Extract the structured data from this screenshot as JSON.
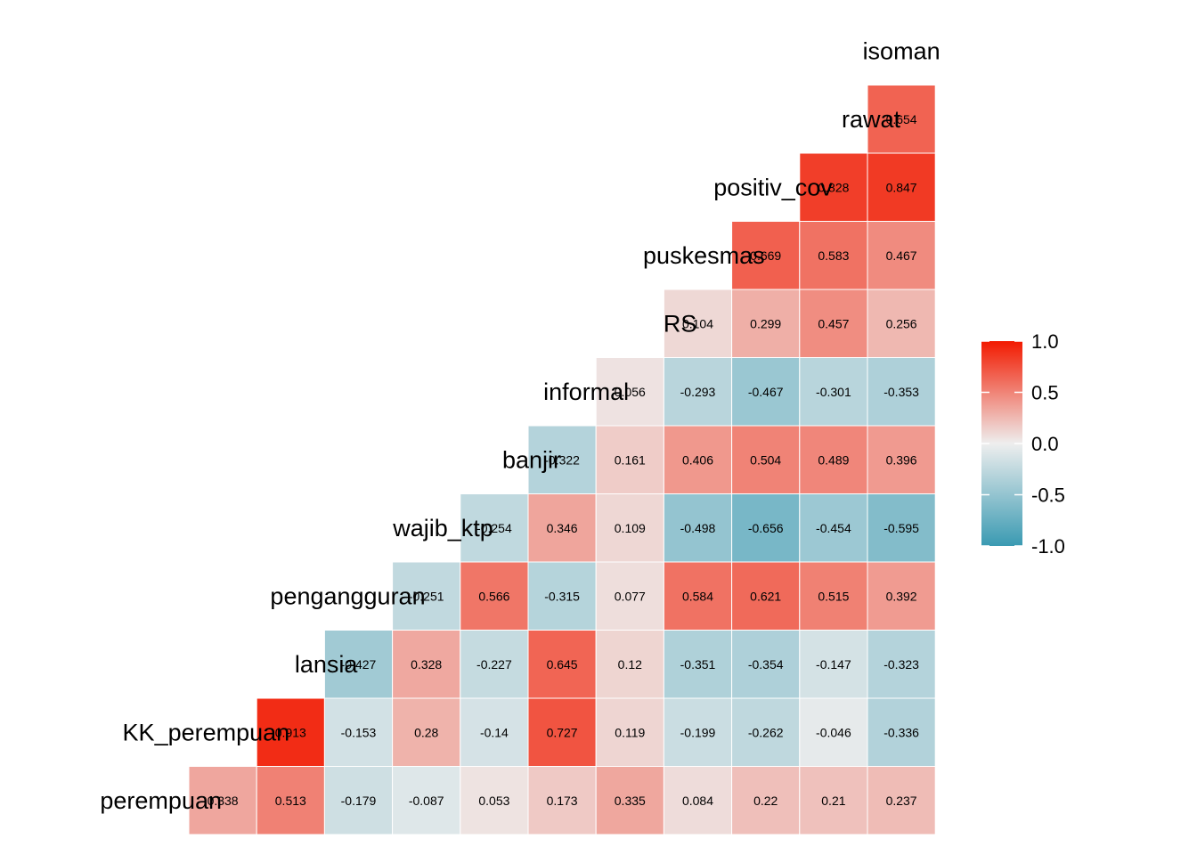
{
  "chart_data": {
    "type": "heatmap",
    "title": "",
    "variables": [
      "perempuan",
      "KK_perempuan",
      "lansia",
      "pengangguran",
      "wajib_ktp",
      "banjir",
      "informal",
      "RS",
      "puskesmas",
      "positiv_cov",
      "rawat",
      "isoman"
    ],
    "rows": [
      {
        "var": "perempuan",
        "label": "perempuan",
        "values": [
          0.338,
          0.513,
          -0.179,
          -0.087,
          0.053,
          0.173,
          0.335,
          0.084,
          0.22,
          0.21,
          0.237
        ]
      },
      {
        "var": "KK_perempuan",
        "label": "KK_perempuan",
        "values": [
          0.913,
          -0.153,
          0.28,
          -0.14,
          0.727,
          0.119,
          -0.199,
          -0.262,
          -0.046,
          -0.336
        ]
      },
      {
        "var": "lansia",
        "label": "lansia",
        "values": [
          -0.427,
          0.328,
          -0.227,
          0.645,
          0.12,
          -0.351,
          -0.354,
          -0.147,
          -0.323
        ]
      },
      {
        "var": "pengangguran",
        "label": "pengangguran",
        "values": [
          -0.251,
          0.566,
          -0.315,
          0.077,
          0.584,
          0.621,
          0.515,
          0.392
        ]
      },
      {
        "var": "wajib_ktp",
        "label": "wajib_ktp",
        "values": [
          -0.254,
          0.346,
          0.109,
          -0.498,
          -0.656,
          -0.454,
          -0.595
        ]
      },
      {
        "var": "banjir",
        "label": "banjir",
        "values": [
          -0.322,
          0.161,
          0.406,
          0.504,
          0.489,
          0.396
        ]
      },
      {
        "var": "informal",
        "label": "informal",
        "values": [
          0.056,
          -0.293,
          -0.467,
          -0.301,
          -0.353
        ]
      },
      {
        "var": "RS",
        "label": "RS",
        "values": [
          0.104,
          0.299,
          0.457,
          0.256
        ]
      },
      {
        "var": "puskesmas",
        "label": "puskesmas",
        "values": [
          0.669,
          0.583,
          0.467
        ]
      },
      {
        "var": "positiv_cov",
        "label": "positiv_cov",
        "values": [
          0.828,
          0.847
        ]
      },
      {
        "var": "rawat",
        "label": "rawat",
        "values": [
          0.654
        ]
      },
      {
        "var": "isoman",
        "label": "isoman",
        "values": []
      }
    ],
    "color_scale": {
      "low": "#3a9ab2",
      "mid": "#eeeeee",
      "high": "#f21a00",
      "limits": [
        -1,
        1
      ]
    },
    "legend": {
      "position": "right",
      "ticks": [
        "1.0",
        "0.5",
        "0.0",
        "-0.5",
        "-1.0"
      ]
    }
  }
}
